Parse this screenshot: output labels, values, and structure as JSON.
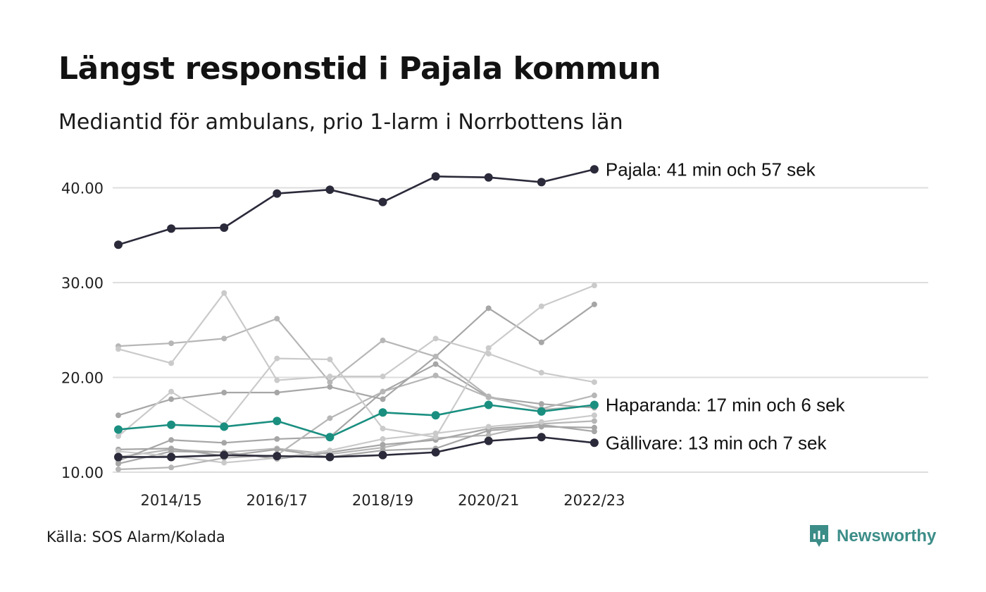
{
  "title": "Längst responstid i Pajala kommun",
  "subtitle": "Mediantid för ambulans, prio 1-larm i Norrbottens län",
  "source": "Källa: SOS Alarm/Kolada",
  "brand": "Newsworthy",
  "colors": {
    "highlight_dark": "#2b2a3a",
    "highlight_teal": "#1a8f80",
    "grey_dark": "#a6a6a6",
    "grey_mid": "#b6b6b6",
    "grey_light": "#cacaca",
    "grid": "#dedede",
    "brand": "#3c8d88"
  },
  "chart_data": {
    "type": "line",
    "title": "Längst responstid i Pajala kommun",
    "subtitle": "Mediantid för ambulans, prio 1-larm i Norrbottens län",
    "x": [
      "2013/14",
      "2014/15",
      "2015/16",
      "2016/17",
      "2017/18",
      "2018/19",
      "2019/20",
      "2020/21",
      "2021/22",
      "2022/23"
    ],
    "x_tick_labels": [
      "2014/15",
      "2016/17",
      "2018/19",
      "2020/21",
      "2022/23"
    ],
    "y_ticks": [
      10,
      20,
      30,
      40
    ],
    "y_tick_labels": [
      "10.00",
      "20.00",
      "30.00",
      "40.00"
    ],
    "ylim": [
      10,
      42
    ],
    "grid": "horizontal",
    "series": [
      {
        "values": [
          11.6,
          12.4,
          12.1,
          12.5,
          11.9,
          12.6,
          13.6,
          13.9,
          15.1,
          15.4
        ],
        "color": "grey_mid"
      },
      {
        "values": [
          12.4,
          12.5,
          11.7,
          12.4,
          11.6,
          12.3,
          12.5,
          14.4,
          14.8,
          14.7
        ],
        "color": "grey_dark"
      },
      {
        "values": [
          10.9,
          12.2,
          12.1,
          11.4,
          12.1,
          12.9,
          13.4,
          14.6,
          15.0,
          14.3
        ],
        "color": "grey_dark"
      },
      {
        "values": [
          12.2,
          11.7,
          11.0,
          11.5,
          12.3,
          13.5,
          14.1,
          14.8,
          15.3,
          16.0
        ],
        "color": "grey_light"
      },
      {
        "values": [
          11.2,
          13.4,
          13.1,
          13.5,
          13.7,
          18.5,
          21.4,
          17.9,
          17.2,
          16.8
        ],
        "color": "grey_dark"
      },
      {
        "values": [
          10.3,
          10.5,
          11.5,
          11.8,
          15.7,
          18.5,
          20.2,
          17.9,
          16.7,
          18.1
        ],
        "color": "grey_mid"
      },
      {
        "values": [
          16.0,
          17.7,
          18.4,
          18.4,
          19.0,
          17.7,
          22.2,
          27.3,
          23.7,
          27.7
        ],
        "color": "grey_dark"
      },
      {
        "values": [
          23.3,
          23.6,
          24.1,
          26.2,
          19.5,
          23.9,
          22.2,
          18.0,
          16.6,
          17.0
        ],
        "color": "grey_mid"
      },
      {
        "values": [
          23.0,
          21.5,
          28.9,
          19.7,
          20.1,
          20.1,
          24.1,
          22.5,
          20.5,
          19.5
        ],
        "color": "grey_light"
      },
      {
        "values": [
          13.8,
          18.5,
          15.0,
          22.0,
          21.9,
          14.6,
          13.7,
          23.1,
          27.5,
          29.7
        ],
        "color": "grey_light"
      },
      {
        "name": "Haparanda: 17 min och 6 sek",
        "values": [
          14.5,
          15.0,
          14.8,
          15.4,
          13.7,
          16.3,
          16.0,
          17.1,
          16.4,
          17.1
        ],
        "color": "highlight_teal"
      },
      {
        "name": "Gällivare: 13 min och 7 sek",
        "values": [
          11.6,
          11.6,
          11.8,
          11.7,
          11.6,
          11.8,
          12.1,
          13.3,
          13.7,
          13.1
        ],
        "color": "highlight_dark"
      },
      {
        "name": "Pajala: 41 min och 57 sek",
        "values": [
          34.0,
          35.7,
          35.8,
          39.4,
          39.8,
          38.5,
          41.2,
          41.1,
          40.6,
          41.95
        ],
        "color": "highlight_dark"
      }
    ]
  }
}
